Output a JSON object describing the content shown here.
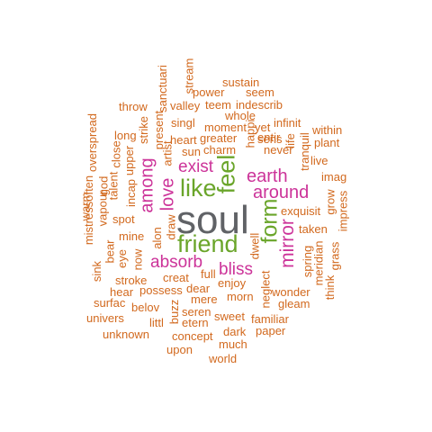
{
  "colors": {
    "orange": "#d2691e",
    "magenta": "#cc3399",
    "green": "#6aa52a",
    "gray": "#606266"
  },
  "words": [
    "soul",
    "friend",
    "like",
    "feel",
    "form",
    "among",
    "love",
    "exist",
    "earth",
    "around",
    "mirror",
    "absorb",
    "bliss",
    "exquisit",
    "taken",
    "imag",
    "impress",
    "grow",
    "within",
    "plant",
    "live",
    "tranquil",
    "infinit",
    "yet",
    "never",
    "entir",
    "sens",
    "life",
    "sustain",
    "seem",
    "indescrib",
    "whole",
    "power",
    "teem",
    "valley",
    "stream",
    "sanctuari",
    "moment",
    "greater",
    "charm",
    "heart",
    "sun",
    "singl",
    "present",
    "artist",
    "strike",
    "throw",
    "long",
    "close",
    "upper",
    "talent",
    "incap",
    "overspread",
    "god",
    "vapour",
    "mistressoften",
    "warm",
    "spot",
    "mine",
    "alon",
    "draw",
    "eye",
    "bear",
    "sink",
    "now",
    "stroke",
    "creat",
    "full",
    "dear",
    "possess",
    "hear",
    "enjoy",
    "surfac",
    "belov",
    "univers",
    "mere",
    "morn",
    "littl",
    "buzz",
    "seren",
    "etern",
    "sweet",
    "familiar",
    "concept",
    "dark",
    "paper",
    "unknown",
    "upon",
    "much",
    "world",
    "neglect",
    "wonder",
    "gleam",
    "dwell",
    "spring",
    "meridian",
    "think",
    "grass",
    "happi"
  ]
}
